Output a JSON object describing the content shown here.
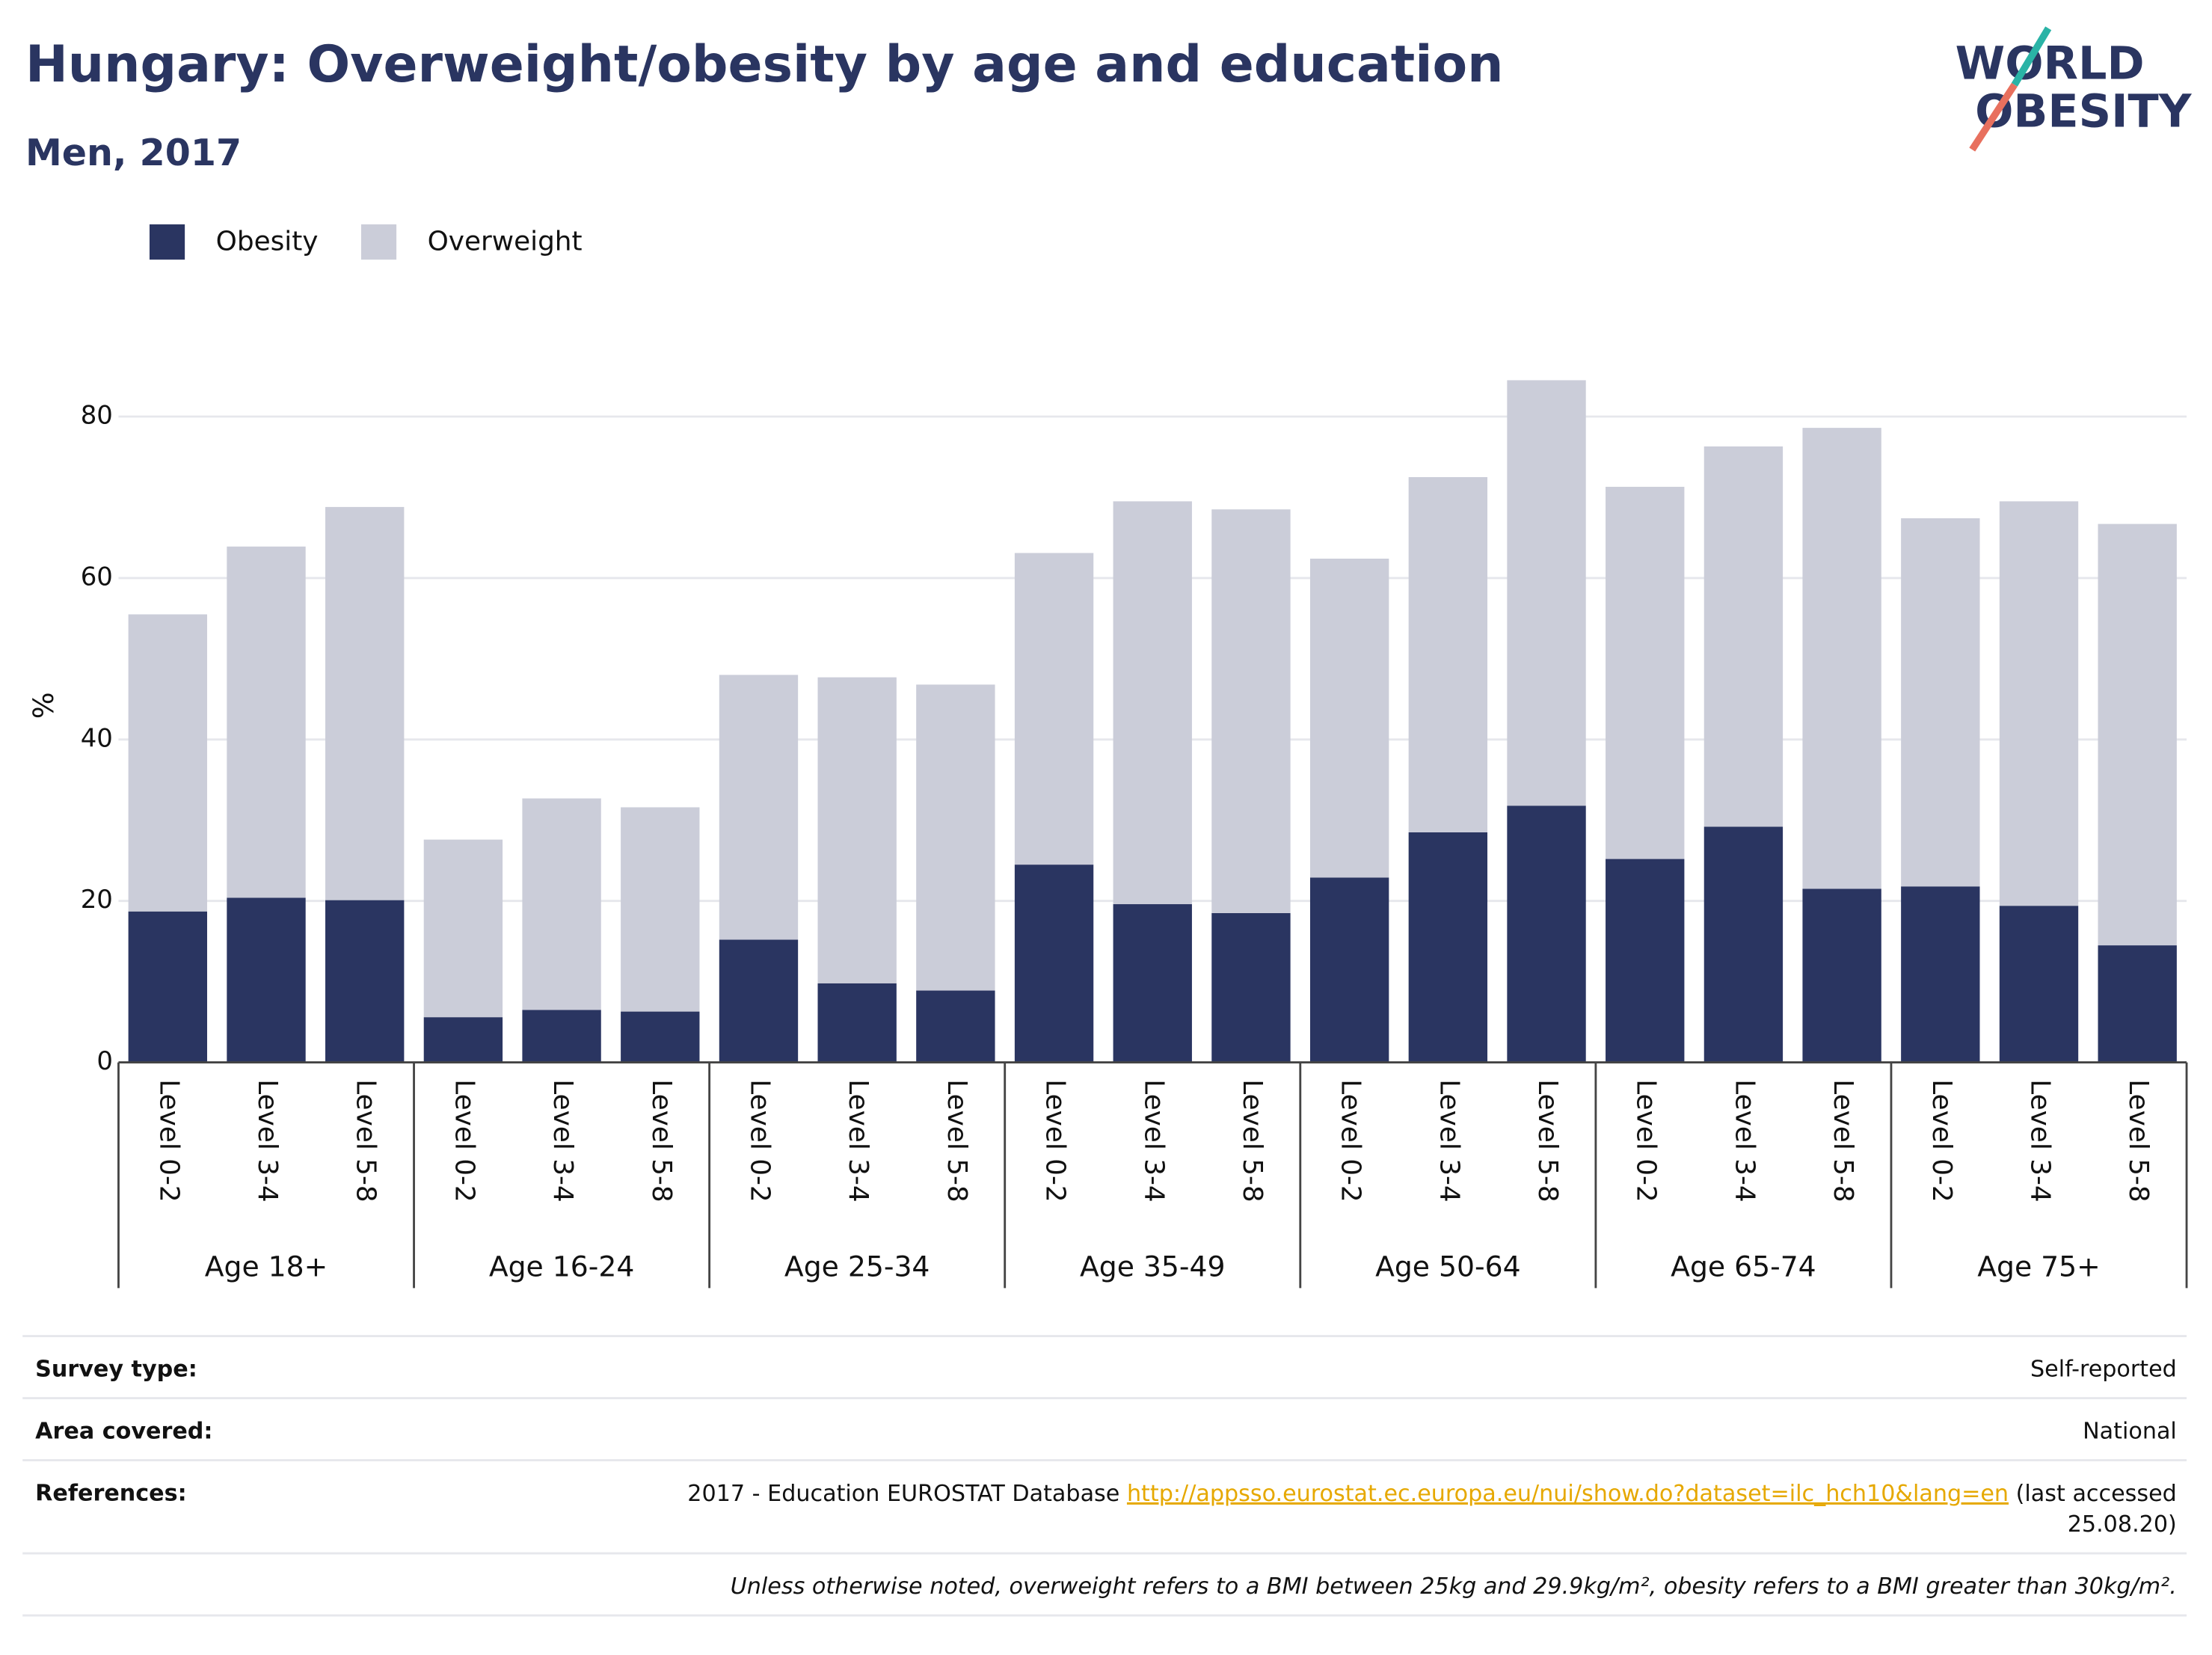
{
  "chart_data": {
    "type": "stacked_bar",
    "title": "Hungary: Overweight/obesity by age and education",
    "subtitle": "Men, 2017",
    "logo": [
      "WORLD",
      "OBESITY"
    ],
    "y_label": "%",
    "categories": [
      "Level 0-2",
      "Level 3-4",
      "Level 5-8",
      "Level 0-2",
      "Level 3-4",
      "Level 5-8",
      "Level 0-2",
      "Level 3-4",
      "Level 5-8",
      "Level 0-2",
      "Level 3-4",
      "Level 5-8",
      "Level 0-2",
      "Level 3-4",
      "Level 5-8",
      "Level 0-2",
      "Level 3-4",
      "Level 5-8",
      "Level 0-2",
      "Level 3-4",
      "Level 5-8"
    ],
    "groups": [
      "Age 18+",
      "Age 16-24",
      "Age 25-34",
      "Age 35-49",
      "Age 50-64",
      "Age 65-74",
      "Age 75+"
    ],
    "series": [
      {
        "name": "Obesity",
        "color": "#2a3561",
        "values": [
          18.7,
          20.4,
          20.1,
          5.6,
          6.5,
          6.3,
          15.2,
          9.8,
          8.9,
          24.5,
          19.6,
          18.5,
          22.9,
          28.5,
          31.8,
          25.2,
          29.2,
          21.5,
          21.8,
          19.4,
          14.5
        ]
      },
      {
        "name": "Overweight",
        "color": "#cbcdd9",
        "values": [
          36.8,
          43.5,
          48.7,
          22.0,
          26.2,
          25.3,
          32.8,
          37.9,
          37.9,
          38.6,
          49.9,
          50.0,
          39.5,
          44.0,
          52.7,
          46.1,
          47.1,
          57.1,
          45.6,
          50.1,
          52.2
        ]
      }
    ],
    "ylim": [
      0,
      90
    ],
    "yticks": [
      0,
      20,
      40,
      60,
      80
    ],
    "grid": true,
    "legend": "top-left"
  },
  "footer": {
    "rows": [
      [
        "Survey type:",
        "Self-reported"
      ],
      [
        "Area covered:",
        "National"
      ]
    ],
    "references": {
      "label": "References:",
      "text": "2017 - Education EUROSTAT Database",
      "link": "http://appsso.eurostat.ec.europa.eu/nui/show.do?dataset=ilc_hch10&lang=en",
      "after": "(last accessed",
      "after2": "25.08.20)"
    },
    "note": "Unless otherwise noted, overweight refers to a BMI between 25kg and 29.9kg/m², obesity refers to a BMI greater than 30kg/m²."
  }
}
